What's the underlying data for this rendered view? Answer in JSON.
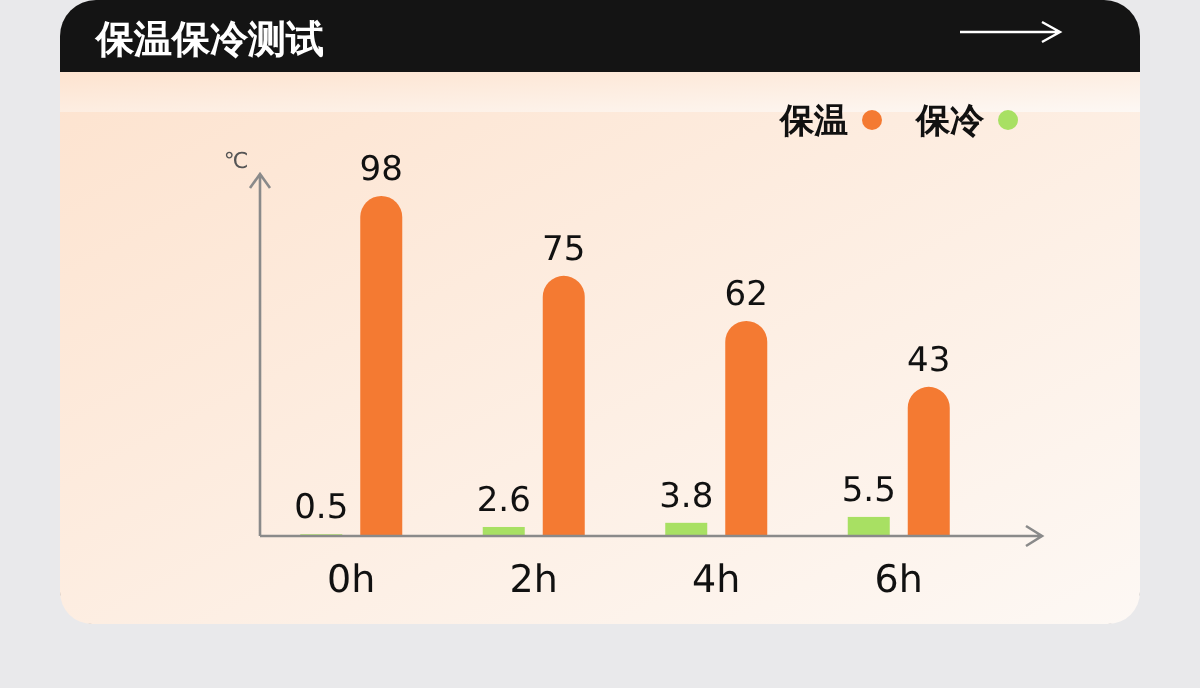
{
  "chart_data": {
    "type": "bar",
    "title": "保温保冷测试",
    "ylabel": "℃",
    "categories": [
      "0h",
      "2h",
      "4h",
      "6h"
    ],
    "series": [
      {
        "name": "保冷",
        "color": "#a8e063",
        "values": [
          0.5,
          2.6,
          3.8,
          5.5
        ]
      },
      {
        "name": "保温",
        "color": "#f47a32",
        "values": [
          98,
          75,
          62,
          43
        ]
      }
    ],
    "data_labels": true,
    "legend": "top right"
  }
}
